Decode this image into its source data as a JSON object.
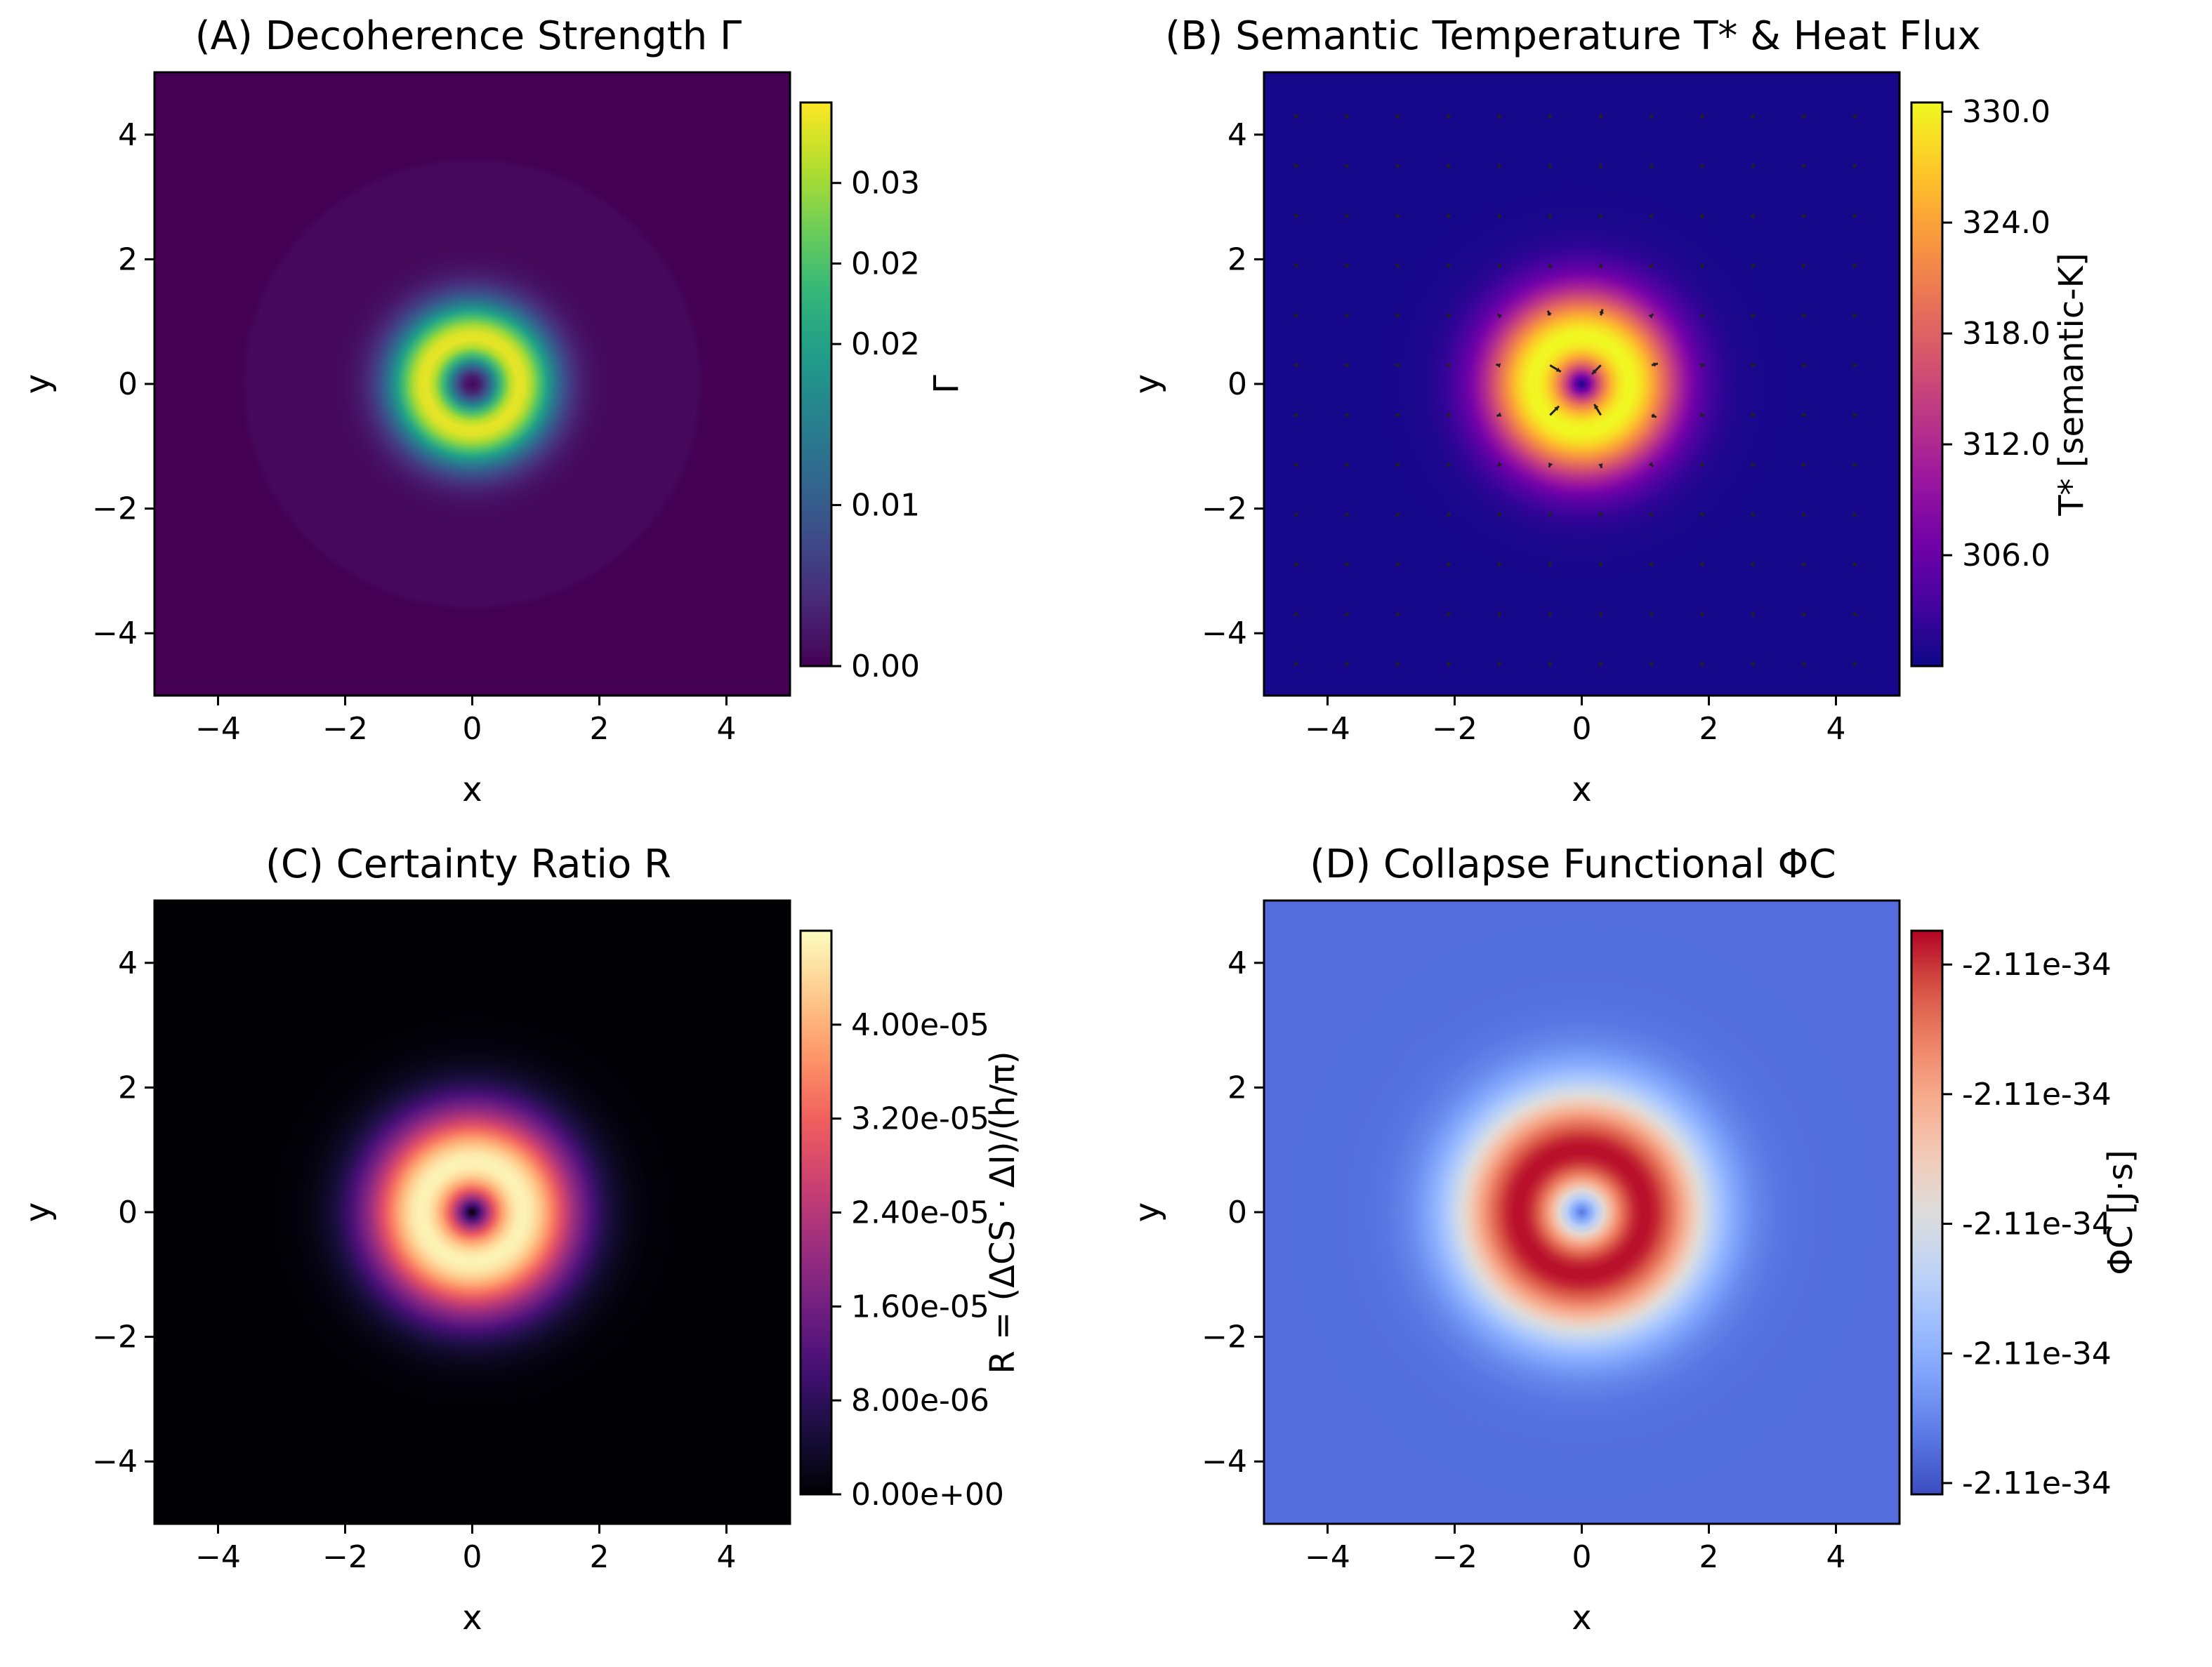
{
  "chart_data": [
    {
      "id": "A",
      "type": "heatmap",
      "title": "(A) Decoherence Strength Γ",
      "xlabel": "x",
      "ylabel": "y",
      "xlim": [
        -5,
        5
      ],
      "ylim": [
        -5,
        5
      ],
      "xticks": [
        -4,
        -2,
        0,
        2,
        4
      ],
      "yticks": [
        -4,
        -2,
        0,
        2,
        4
      ],
      "xtick_labels": [
        "−4",
        "−2",
        "0",
        "2",
        "4"
      ],
      "ytick_labels": [
        "−4",
        "−2",
        "0",
        "2",
        "4"
      ],
      "colormap": "viridis",
      "colorbar": {
        "label": "Γ",
        "range": [
          0,
          0.035
        ],
        "ticks": [
          0.0,
          0.01,
          0.02,
          0.025,
          0.03
        ],
        "tick_labels": [
          "0.00",
          "0.01",
          "0.02",
          "0.02",
          "0.03"
        ]
      },
      "field": {
        "shape": "ring",
        "peak_radius": 0.75,
        "zero_beyond_radius": 3.6,
        "max_value": 0.035
      }
    },
    {
      "id": "B",
      "type": "heatmap",
      "title": "(B) Semantic Temperature T* & Heat Flux",
      "xlabel": "x",
      "ylabel": "y",
      "xlim": [
        -5,
        5
      ],
      "ylim": [
        -5,
        5
      ],
      "xticks": [
        -4,
        -2,
        0,
        2,
        4
      ],
      "yticks": [
        -4,
        -2,
        0,
        2,
        4
      ],
      "xtick_labels": [
        "−4",
        "−2",
        "0",
        "2",
        "4"
      ],
      "ytick_labels": [
        "−4",
        "−2",
        "0",
        "2",
        "4"
      ],
      "colormap": "plasma",
      "colorbar": {
        "label": "T* [semantic-K]",
        "range": [
          300,
          330.5
        ],
        "ticks": [
          306,
          312,
          318,
          324,
          330
        ],
        "tick_labels": [
          "306.0",
          "312.0",
          "318.0",
          "324.0",
          "330.0"
        ]
      },
      "field": {
        "shape": "ring",
        "peak_radius": 0.75,
        "min_value": 300,
        "max_value": 330.5
      },
      "overlay": "heat-flux quiver arrows"
    },
    {
      "id": "C",
      "type": "heatmap",
      "title": "(C) Certainty Ratio R",
      "xlabel": "x",
      "ylabel": "y",
      "xlim": [
        -5,
        5
      ],
      "ylim": [
        -5,
        5
      ],
      "xticks": [
        -4,
        -2,
        0,
        2,
        4
      ],
      "yticks": [
        -4,
        -2,
        0,
        2,
        4
      ],
      "xtick_labels": [
        "−4",
        "−2",
        "0",
        "2",
        "4"
      ],
      "ytick_labels": [
        "−4",
        "−2",
        "0",
        "2",
        "4"
      ],
      "colormap": "magma",
      "colorbar": {
        "label": "R = (ΔCS · ΔI)/(h/π)",
        "range": [
          0,
          4.8e-05
        ],
        "ticks": [
          0,
          8e-06,
          1.6e-05,
          2.4e-05,
          3.2e-05,
          4e-05
        ],
        "tick_labels": [
          "0.00e+00",
          "8.00e-06",
          "1.60e-05",
          "2.40e-05",
          "3.20e-05",
          "4.00e-05"
        ]
      },
      "field": {
        "shape": "ring",
        "peak_radius": 0.75,
        "max_value": 4.8e-05
      }
    },
    {
      "id": "D",
      "type": "heatmap",
      "title": "(D) Collapse Functional ΦC",
      "xlabel": "x",
      "ylabel": "y",
      "xlim": [
        -5,
        5
      ],
      "ylim": [
        -5,
        5
      ],
      "xticks": [
        -4,
        -2,
        0,
        2,
        4
      ],
      "yticks": [
        -4,
        -2,
        0,
        2,
        4
      ],
      "xtick_labels": [
        "−4",
        "−2",
        "0",
        "2",
        "4"
      ],
      "ytick_labels": [
        "−4",
        "−2",
        "0",
        "2",
        "4"
      ],
      "colormap": "coolwarm",
      "colorbar": {
        "label": "ΦC [J·s]",
        "range": [
          0,
          1
        ],
        "ticks": [
          0.02,
          0.25,
          0.48,
          0.71,
          0.94
        ],
        "tick_labels": [
          "-2.11e-34",
          "-2.11e-34",
          "-2.11e-34",
          "-2.11e-34",
          "-2.11e-34"
        ]
      },
      "field": {
        "shape": "ring",
        "peak_radius": 1.0,
        "relative_scale": true
      }
    }
  ]
}
